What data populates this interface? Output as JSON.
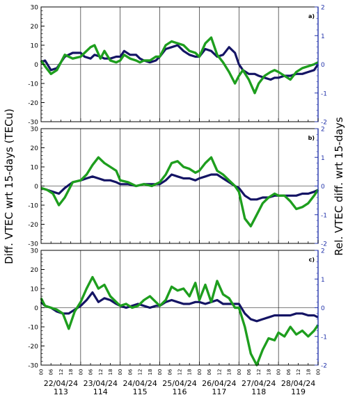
{
  "colors": {
    "series_a": "#141464",
    "series_b": "#1e9e1e",
    "right_axis": "#2233aa",
    "frame": "#000000",
    "grid": "#000000"
  },
  "axis_titles": {
    "left": "Diff. VTEC wrt 15-days (TECu)",
    "right": "Rel. VTEC diff. wrt 15-days"
  },
  "hour_ticks": [
    "00",
    "06",
    "12",
    "18"
  ],
  "days": [
    {
      "date": "22/04/24",
      "doy": "113"
    },
    {
      "date": "23/04/24",
      "doy": "114"
    },
    {
      "date": "24/04/24",
      "doy": "115"
    },
    {
      "date": "25/04/24",
      "doy": "116"
    },
    {
      "date": "26/04/24",
      "doy": "117"
    },
    {
      "date": "27/04/24",
      "doy": "118"
    },
    {
      "date": "28/04/24",
      "doy": "119"
    }
  ],
  "chart_data": [
    {
      "type": "line",
      "panel": "a)",
      "x_unit": "days since 22/04/24 00 UT",
      "xlim": [
        0,
        7
      ],
      "ylim": [
        -30,
        30
      ],
      "yticks": [
        -30,
        -20,
        -10,
        0,
        10,
        20,
        30
      ],
      "y2lim": [
        -2,
        2
      ],
      "y2ticks": [
        -2,
        -1,
        0,
        1,
        2
      ],
      "series": [
        {
          "color_key": "series_a",
          "x": [
            0,
            0.1,
            0.25,
            0.4,
            0.6,
            0.8,
            1.0,
            1.1,
            1.25,
            1.35,
            1.5,
            1.6,
            1.75,
            1.9,
            2.0,
            2.1,
            2.25,
            2.4,
            2.5,
            2.6,
            2.75,
            2.9,
            3.0,
            3.15,
            3.3,
            3.45,
            3.6,
            3.75,
            3.9,
            4.0,
            4.15,
            4.3,
            4.45,
            4.6,
            4.75,
            4.9,
            5.0,
            5.1,
            5.25,
            5.4,
            5.5,
            5.65,
            5.8,
            5.9,
            6.0,
            6.15,
            6.3,
            6.45,
            6.6,
            6.75,
            6.9,
            7.0
          ],
          "y": [
            1,
            2,
            -3,
            -2,
            4,
            6,
            6,
            4,
            3,
            5,
            4,
            3,
            3,
            4,
            4,
            7,
            5,
            5,
            3,
            2,
            1,
            2,
            4,
            8,
            9,
            10,
            7,
            5,
            4,
            4,
            8,
            7,
            4,
            5,
            9,
            6,
            0,
            -3,
            -5,
            -5,
            -6,
            -7,
            -8,
            -7,
            -7,
            -6,
            -6,
            -5,
            -5,
            -4,
            -3,
            0
          ]
        },
        {
          "color_key": "series_b",
          "x": [
            0,
            0.1,
            0.25,
            0.4,
            0.6,
            0.8,
            1.0,
            1.1,
            1.25,
            1.35,
            1.5,
            1.6,
            1.75,
            1.9,
            2.0,
            2.1,
            2.25,
            2.4,
            2.5,
            2.6,
            2.75,
            2.9,
            3.0,
            3.15,
            3.3,
            3.45,
            3.6,
            3.75,
            3.9,
            4.0,
            4.15,
            4.3,
            4.45,
            4.6,
            4.75,
            4.9,
            5.0,
            5.1,
            5.25,
            5.4,
            5.5,
            5.65,
            5.8,
            5.9,
            6.0,
            6.15,
            6.3,
            6.45,
            6.6,
            6.75,
            6.9,
            7.0
          ],
          "y": [
            2,
            -1,
            -5,
            -3,
            5,
            3,
            4,
            6,
            9,
            10,
            3,
            7,
            2,
            1,
            2,
            5,
            3,
            2,
            1,
            2,
            2,
            4,
            4,
            10,
            12,
            11,
            10,
            7,
            6,
            4,
            11,
            14,
            5,
            1,
            -4,
            -10,
            -6,
            -3,
            -8,
            -15,
            -10,
            -6,
            -4,
            -3,
            -4,
            -6,
            -8,
            -4,
            -2,
            -1,
            0,
            1
          ]
        }
      ]
    },
    {
      "type": "line",
      "panel": "b)",
      "x_unit": "days since 22/04/24 00 UT",
      "xlim": [
        0,
        7
      ],
      "ylim": [
        -30,
        30
      ],
      "yticks": [
        -30,
        -20,
        -10,
        0,
        10,
        20,
        30
      ],
      "y2lim": [
        -2,
        2
      ],
      "y2ticks": [
        -2,
        -1,
        0,
        1,
        2
      ],
      "series": [
        {
          "color_key": "series_a",
          "x": [
            0,
            0.15,
            0.3,
            0.45,
            0.6,
            0.8,
            1.0,
            1.15,
            1.3,
            1.45,
            1.6,
            1.75,
            1.9,
            2.0,
            2.2,
            2.4,
            2.6,
            2.8,
            3.0,
            3.15,
            3.3,
            3.45,
            3.6,
            3.75,
            3.9,
            4.0,
            4.15,
            4.3,
            4.45,
            4.6,
            4.75,
            4.9,
            5.0,
            5.15,
            5.3,
            5.45,
            5.6,
            5.75,
            5.9,
            6.0,
            6.15,
            6.3,
            6.45,
            6.6,
            6.75,
            6.9,
            7.0
          ],
          "y": [
            -1,
            -2,
            -3,
            -4,
            -1,
            2,
            3,
            4,
            5,
            4,
            3,
            3,
            2,
            1,
            1,
            0,
            1,
            1,
            1,
            3,
            6,
            5,
            4,
            4,
            3,
            4,
            5,
            6,
            6,
            4,
            2,
            0,
            -1,
            -5,
            -7,
            -7,
            -6,
            -6,
            -5,
            -5,
            -5,
            -5,
            -5,
            -4,
            -4,
            -3,
            -2
          ]
        },
        {
          "color_key": "series_b",
          "x": [
            0,
            0.15,
            0.3,
            0.45,
            0.6,
            0.8,
            1.0,
            1.15,
            1.3,
            1.45,
            1.6,
            1.75,
            1.9,
            2.0,
            2.2,
            2.4,
            2.6,
            2.8,
            3.0,
            3.15,
            3.3,
            3.45,
            3.6,
            3.75,
            3.9,
            4.0,
            4.15,
            4.3,
            4.45,
            4.6,
            4.75,
            4.9,
            5.0,
            5.15,
            5.3,
            5.45,
            5.6,
            5.75,
            5.9,
            6.0,
            6.15,
            6.3,
            6.45,
            6.6,
            6.75,
            6.9,
            7.0
          ],
          "y": [
            -1,
            -2,
            -4,
            -10,
            -6,
            2,
            3,
            6,
            11,
            15,
            12,
            10,
            8,
            3,
            2,
            0,
            1,
            0,
            2,
            6,
            12,
            13,
            10,
            9,
            7,
            8,
            12,
            15,
            8,
            6,
            3,
            0,
            -3,
            -17,
            -21,
            -15,
            -9,
            -6,
            -4,
            -5,
            -5,
            -8,
            -12,
            -11,
            -9,
            -5,
            -2
          ]
        }
      ]
    },
    {
      "type": "line",
      "panel": "c)",
      "x_unit": "days since 22/04/24 00 UT",
      "xlim": [
        0,
        7
      ],
      "ylim": [
        -30,
        30
      ],
      "yticks": [
        -30,
        -20,
        -10,
        0,
        10,
        20,
        30
      ],
      "y2lim": [
        -2,
        2
      ],
      "y2ticks": [
        -2,
        -1,
        0,
        1,
        2
      ],
      "series": [
        {
          "color_key": "series_a",
          "x": [
            0,
            0.1,
            0.25,
            0.4,
            0.55,
            0.7,
            0.85,
            1.0,
            1.15,
            1.3,
            1.45,
            1.6,
            1.75,
            1.9,
            2.0,
            2.15,
            2.3,
            2.45,
            2.6,
            2.75,
            2.9,
            3.0,
            3.15,
            3.3,
            3.45,
            3.6,
            3.75,
            3.9,
            4.0,
            4.15,
            4.3,
            4.45,
            4.6,
            4.75,
            4.9,
            5.0,
            5.15,
            5.3,
            5.45,
            5.6,
            5.75,
            5.9,
            6.0,
            6.15,
            6.3,
            6.45,
            6.6,
            6.75,
            6.9,
            7.0
          ],
          "y": [
            3,
            1,
            0,
            -2,
            -3,
            -3,
            -1,
            1,
            4,
            8,
            3,
            5,
            4,
            2,
            1,
            0,
            1,
            2,
            1,
            0,
            1,
            1,
            3,
            4,
            3,
            2,
            2,
            3,
            3,
            2,
            3,
            4,
            2,
            2,
            2,
            2,
            -3,
            -6,
            -7,
            -6,
            -5,
            -4,
            -4,
            -4,
            -4,
            -3,
            -3,
            -4,
            -4,
            -5
          ]
        },
        {
          "color_key": "series_b",
          "x": [
            0,
            0.1,
            0.25,
            0.4,
            0.55,
            0.7,
            0.85,
            1.0,
            1.15,
            1.3,
            1.45,
            1.6,
            1.75,
            1.9,
            2.0,
            2.15,
            2.3,
            2.45,
            2.6,
            2.75,
            2.9,
            3.0,
            3.15,
            3.3,
            3.45,
            3.6,
            3.75,
            3.9,
            4.0,
            4.15,
            4.3,
            4.45,
            4.6,
            4.75,
            4.9,
            5.0,
            5.15,
            5.3,
            5.45,
            5.6,
            5.75,
            5.9,
            6.0,
            6.15,
            6.3,
            6.45,
            6.6,
            6.75,
            6.9,
            7.0
          ],
          "y": [
            5,
            1,
            0,
            -1,
            -3,
            -11,
            -2,
            3,
            10,
            16,
            10,
            12,
            6,
            3,
            1,
            2,
            0,
            1,
            4,
            6,
            3,
            1,
            4,
            11,
            9,
            10,
            6,
            13,
            4,
            12,
            3,
            14,
            7,
            5,
            0,
            0,
            -10,
            -24,
            -30,
            -22,
            -16,
            -17,
            -13,
            -15,
            -10,
            -14,
            -12,
            -15,
            -12,
            -9
          ]
        }
      ]
    }
  ]
}
